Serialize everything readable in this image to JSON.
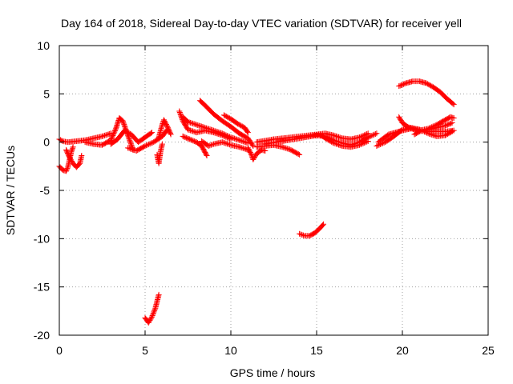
{
  "chart_data": {
    "type": "scatter",
    "title": "Day 164 of 2018, Sidereal Day-to-day VTEC variation (SDTVAR) for receiver yell",
    "xlabel": "GPS time / hours",
    "ylabel": "SDTVAR / TECUs",
    "xlim": [
      0,
      25
    ],
    "ylim": [
      -20,
      10
    ],
    "xticks": [
      "0",
      "5",
      "10",
      "15",
      "20",
      "25"
    ],
    "yticks": [
      "10",
      "5",
      "0",
      "-5",
      "-10",
      "-15",
      "-20"
    ],
    "xtick_values": [
      0,
      5,
      10,
      15,
      20,
      25
    ],
    "ytick_values": [
      10,
      5,
      0,
      -5,
      -10,
      -15,
      -20
    ],
    "grid": true,
    "marker": "+",
    "series": [
      {
        "name": "SDTVAR",
        "color": "#ff0000",
        "tracks": [
          [
            [
              0.0,
              0.3
            ],
            [
              0.2,
              0.1
            ],
            [
              0.5,
              0.0
            ],
            [
              1.0,
              0.1
            ],
            [
              1.5,
              0.2
            ],
            [
              2.0,
              0.4
            ],
            [
              2.5,
              0.6
            ],
            [
              3.0,
              0.9
            ]
          ],
          [
            [
              0.0,
              -2.5
            ],
            [
              0.2,
              -2.9
            ],
            [
              0.4,
              -3.0
            ],
            [
              0.5,
              -2.6
            ],
            [
              0.6,
              -1.8
            ],
            [
              0.7,
              -1.0
            ],
            [
              0.8,
              -0.5
            ]
          ],
          [
            [
              0.4,
              -0.8
            ],
            [
              0.6,
              -1.6
            ],
            [
              0.8,
              -2.2
            ],
            [
              1.0,
              -2.6
            ],
            [
              1.2,
              -2.2
            ],
            [
              1.3,
              -1.4
            ]
          ],
          [
            [
              1.5,
              0.0
            ],
            [
              2.0,
              -0.2
            ],
            [
              2.5,
              -0.3
            ],
            [
              3.0,
              0.2
            ],
            [
              3.3,
              1.4
            ],
            [
              3.5,
              2.5
            ],
            [
              3.7,
              2.2
            ],
            [
              3.9,
              1.2
            ],
            [
              4.1,
              0.2
            ],
            [
              4.3,
              -0.8
            ]
          ],
          [
            [
              3.0,
              -0.2
            ],
            [
              3.4,
              0.3
            ],
            [
              3.8,
              1.2
            ],
            [
              4.2,
              0.8
            ],
            [
              4.6,
              0.0
            ],
            [
              5.0,
              0.5
            ],
            [
              5.4,
              1.0
            ]
          ],
          [
            [
              4.0,
              -0.6
            ],
            [
              4.5,
              -0.9
            ],
            [
              5.0,
              -0.4
            ],
            [
              5.5,
              0.0
            ],
            [
              6.0,
              0.6
            ],
            [
              6.3,
              1.3
            ]
          ],
          [
            [
              5.0,
              -18.2
            ],
            [
              5.2,
              -18.7
            ],
            [
              5.4,
              -18.1
            ],
            [
              5.6,
              -17.2
            ],
            [
              5.8,
              -15.8
            ]
          ],
          [
            [
              5.8,
              0.5
            ],
            [
              6.0,
              1.8
            ],
            [
              6.1,
              2.3
            ],
            [
              6.3,
              1.6
            ],
            [
              6.5,
              0.8
            ]
          ],
          [
            [
              5.7,
              -1.3
            ],
            [
              5.8,
              -2.2
            ],
            [
              5.9,
              -1.0
            ],
            [
              6.0,
              -0.2
            ]
          ],
          [
            [
              7.0,
              3.2
            ],
            [
              7.2,
              2.2
            ],
            [
              7.5,
              1.3
            ],
            [
              8.0,
              1.0
            ],
            [
              8.5,
              1.2
            ],
            [
              9.0,
              1.0
            ],
            [
              9.5,
              0.7
            ],
            [
              10.0,
              0.3
            ]
          ],
          [
            [
              7.2,
              2.6
            ],
            [
              7.5,
              2.1
            ],
            [
              8.0,
              1.8
            ],
            [
              8.5,
              1.5
            ],
            [
              9.0,
              1.2
            ],
            [
              9.5,
              0.9
            ],
            [
              10.0,
              0.5
            ],
            [
              10.5,
              0.2
            ],
            [
              11.0,
              -0.1
            ]
          ],
          [
            [
              8.2,
              4.3
            ],
            [
              8.5,
              3.8
            ],
            [
              9.0,
              2.9
            ],
            [
              9.5,
              2.2
            ],
            [
              10.0,
              1.6
            ],
            [
              10.5,
              0.9
            ],
            [
              11.0,
              0.4
            ],
            [
              11.3,
              -0.4
            ]
          ],
          [
            [
              9.6,
              2.8
            ],
            [
              10.0,
              2.4
            ],
            [
              10.4,
              1.9
            ],
            [
              10.8,
              1.5
            ],
            [
              11.0,
              1.0
            ]
          ],
          [
            [
              8.3,
              0.1
            ],
            [
              8.7,
              -0.4
            ],
            [
              9.0,
              -0.2
            ],
            [
              9.5,
              0.0
            ],
            [
              10.0,
              -0.3
            ],
            [
              10.5,
              -0.5
            ],
            [
              11.0,
              -0.8
            ]
          ],
          [
            [
              7.2,
              0.6
            ],
            [
              7.6,
              0.3
            ],
            [
              8.0,
              0.0
            ],
            [
              8.3,
              -0.4
            ],
            [
              8.6,
              -1.4
            ]
          ],
          [
            [
              11.0,
              -0.6
            ],
            [
              11.2,
              -1.3
            ],
            [
              11.3,
              -1.8
            ],
            [
              11.5,
              -1.2
            ],
            [
              11.8,
              -0.8
            ],
            [
              12.0,
              -0.9
            ]
          ],
          [
            [
              11.5,
              -0.5
            ],
            [
              12.0,
              -0.4
            ],
            [
              12.5,
              -0.3
            ],
            [
              13.0,
              -0.5
            ],
            [
              13.5,
              -0.8
            ],
            [
              14.0,
              -1.3
            ]
          ],
          [
            [
              11.5,
              0.0
            ],
            [
              12.5,
              0.3
            ],
            [
              13.5,
              0.5
            ],
            [
              14.5,
              0.7
            ],
            [
              15.5,
              0.9
            ],
            [
              16.0,
              0.7
            ],
            [
              16.5,
              0.4
            ],
            [
              17.0,
              0.3
            ],
            [
              17.5,
              0.5
            ],
            [
              18.0,
              0.9
            ]
          ],
          [
            [
              12.0,
              -0.2
            ],
            [
              13.0,
              0.1
            ],
            [
              14.0,
              0.4
            ],
            [
              15.0,
              0.7
            ],
            [
              15.5,
              0.6
            ],
            [
              16.0,
              0.2
            ],
            [
              16.5,
              -0.1
            ],
            [
              17.0,
              -0.3
            ],
            [
              17.5,
              0.0
            ],
            [
              18.0,
              0.5
            ],
            [
              18.5,
              0.9
            ]
          ],
          [
            [
              14.0,
              -9.5
            ],
            [
              14.3,
              -9.7
            ],
            [
              14.6,
              -9.7
            ],
            [
              14.9,
              -9.4
            ],
            [
              15.2,
              -8.9
            ],
            [
              15.4,
              -8.5
            ]
          ],
          [
            [
              15.2,
              0.8
            ],
            [
              15.6,
              0.3
            ],
            [
              16.0,
              -0.1
            ],
            [
              16.5,
              -0.4
            ],
            [
              17.0,
              -0.5
            ],
            [
              17.5,
              -0.3
            ],
            [
              18.0,
              0.1
            ]
          ],
          [
            [
              18.6,
              0.0
            ],
            [
              18.9,
              0.4
            ],
            [
              19.2,
              0.8
            ],
            [
              19.6,
              1.0
            ],
            [
              20.0,
              1.2
            ],
            [
              20.5,
              1.4
            ],
            [
              21.0,
              1.3
            ],
            [
              21.5,
              1.1
            ],
            [
              22.0,
              1.1
            ],
            [
              22.5,
              1.1
            ],
            [
              23.0,
              1.2
            ]
          ],
          [
            [
              18.5,
              -0.4
            ],
            [
              19.0,
              0.0
            ],
            [
              19.5,
              0.6
            ],
            [
              20.0,
              1.3
            ],
            [
              20.5,
              1.5
            ],
            [
              21.0,
              1.3
            ],
            [
              21.5,
              0.9
            ],
            [
              22.0,
              0.6
            ],
            [
              22.5,
              0.7
            ],
            [
              22.9,
              1.1
            ]
          ],
          [
            [
              19.8,
              2.6
            ],
            [
              20.0,
              2.0
            ],
            [
              20.3,
              1.6
            ],
            [
              20.7,
              1.3
            ],
            [
              21.0,
              1.2
            ],
            [
              21.5,
              1.4
            ],
            [
              22.0,
              1.8
            ],
            [
              22.5,
              2.3
            ],
            [
              22.8,
              2.6
            ],
            [
              23.0,
              2.5
            ]
          ],
          [
            [
              20.7,
              0.8
            ],
            [
              21.0,
              1.1
            ],
            [
              21.5,
              1.3
            ],
            [
              22.0,
              1.5
            ],
            [
              22.5,
              1.7
            ],
            [
              22.9,
              2.0
            ]
          ],
          [
            [
              19.8,
              5.8
            ],
            [
              20.2,
              6.1
            ],
            [
              20.6,
              6.3
            ],
            [
              21.0,
              6.3
            ],
            [
              21.4,
              6.1
            ],
            [
              21.8,
              5.7
            ],
            [
              22.2,
              5.2
            ],
            [
              22.6,
              4.5
            ],
            [
              23.0,
              3.9
            ]
          ]
        ]
      }
    ]
  }
}
